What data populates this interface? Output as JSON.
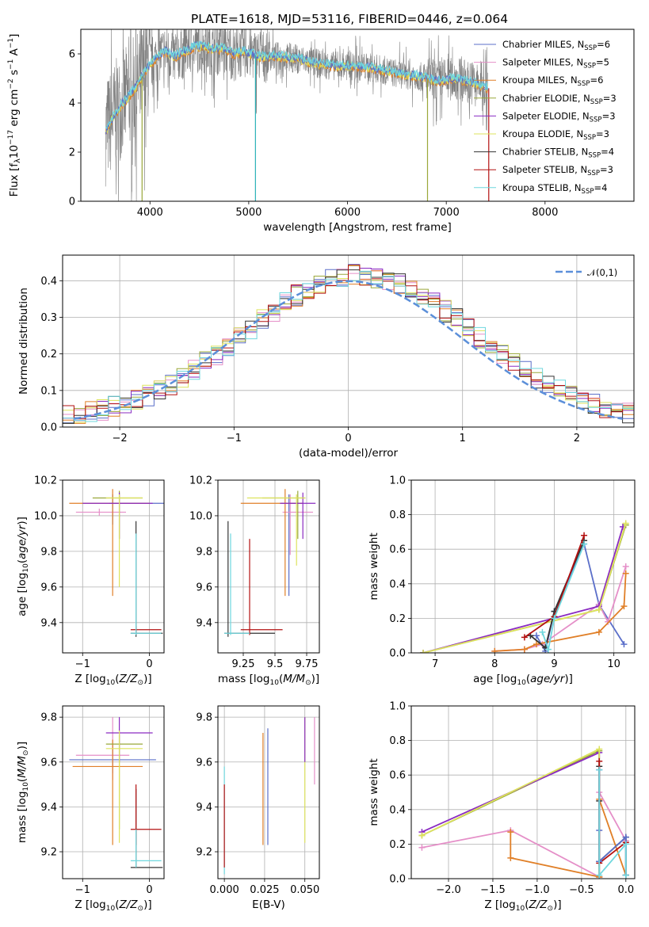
{
  "title": "PLATE=1618, MJD=53116, FIBERID=0446, z=0.064",
  "colors": {
    "blue": "#5b6fc9",
    "pink": "#e58fc8",
    "orange": "#e07f27",
    "olive": "#9aa83a",
    "purple": "#8a2bc2",
    "yellow": "#dde35d",
    "dark": "#333333",
    "red": "#b31010",
    "cyan": "#6fd7de",
    "gray": "#808080",
    "teal": "#2ab1b8",
    "dash": "#5b8fd9"
  },
  "chart_data": [
    {
      "id": "spectrum",
      "type": "line",
      "xlabel": "wavelength [Angstrom, rest frame]",
      "ylabel": "Flux [f_λ 10^-17 erg cm^-2 s^-1 A^-1]",
      "xlim": [
        3300,
        8900
      ],
      "ylim": [
        0,
        7
      ],
      "xticks": [
        4000,
        5000,
        6000,
        7000,
        8000
      ],
      "yticks": [
        0,
        2,
        4,
        6
      ],
      "grid": false,
      "legend_position": "right",
      "continuum": {
        "x": [
          3550,
          3650,
          3750,
          3850,
          3950,
          4050,
          4150,
          4250,
          4350,
          4450,
          4550,
          4650,
          4750,
          4850,
          4950,
          5100,
          5300,
          5500,
          5700,
          5900,
          6100,
          6300,
          6500,
          6700,
          6900,
          7100,
          7300,
          7420
        ],
        "y": [
          2.8,
          3.6,
          4.1,
          4.6,
          5.3,
          5.8,
          6.1,
          5.9,
          6.1,
          6.3,
          6.3,
          6.2,
          6.2,
          6.0,
          6.1,
          5.9,
          5.9,
          5.8,
          5.6,
          5.5,
          5.5,
          5.4,
          5.2,
          5.1,
          4.9,
          5.0,
          4.8,
          4.6
        ]
      },
      "series": [
        {
          "name": "Chabrier MILES, N_SSP=6",
          "color": "blue"
        },
        {
          "name": "Salpeter MILES, N_SSP=5",
          "color": "pink"
        },
        {
          "name": "Kroupa MILES, N_SSP=6",
          "color": "orange"
        },
        {
          "name": "Chabrier ELODIE, N_SSP=3",
          "color": "olive"
        },
        {
          "name": "Salpeter ELODIE, N_SSP=3",
          "color": "purple"
        },
        {
          "name": "Kroupa ELODIE, N_SSP=3",
          "color": "yellow"
        },
        {
          "name": "Chabrier STELIB, N_SSP=4",
          "color": "dark"
        },
        {
          "name": "Salpeter STELIB, N_SSP=3",
          "color": "red"
        },
        {
          "name": "Kroupa STELIB, N_SSP=4",
          "color": "cyan"
        }
      ]
    },
    {
      "id": "residuals",
      "type": "line",
      "xlabel": "(data-model)/error",
      "ylabel": "Normed distribution",
      "xlim": [
        -2.5,
        2.5
      ],
      "ylim": [
        0,
        0.47
      ],
      "xticks": [
        -2,
        -1,
        0,
        1,
        2
      ],
      "yticks": [
        0.0,
        0.1,
        0.2,
        0.3,
        0.4
      ],
      "grid": true,
      "legend_position": "top-right",
      "legend": "𝒩(0,1)",
      "bin_width": 0.1
    },
    {
      "id": "age-vs-Z",
      "type": "scatter",
      "xlabel": "Z [log10(Z/Z⊙)]",
      "ylabel": "age [log10(age/yr)]",
      "xlim": [
        -1.3,
        0.22
      ],
      "ylim": [
        9.23,
        10.2
      ],
      "xticks": [
        -1,
        0
      ],
      "yticks": [
        9.4,
        9.6,
        9.8,
        10.0,
        10.2
      ],
      "grid": true,
      "points": [
        {
          "x": -0.55,
          "y": 10.07,
          "dx": [
            -0.6,
            0.25
          ],
          "dy": [
            9.95,
            10.12
          ],
          "color": "blue"
        },
        {
          "x": -0.75,
          "y": 10.02,
          "dx": [
            -1.1,
            -0.35
          ],
          "dy": [
            10.0,
            10.04
          ],
          "color": "pink"
        },
        {
          "x": -0.55,
          "y": 10.07,
          "dx": [
            -1.2,
            0.0
          ],
          "dy": [
            9.55,
            10.15
          ],
          "color": "orange"
        },
        {
          "x": -0.45,
          "y": 10.1,
          "dx": [
            -0.85,
            -0.1
          ],
          "dy": [
            9.87,
            10.14
          ],
          "color": "olive"
        },
        {
          "x": -0.45,
          "y": 10.07,
          "dx": [
            -1.0,
            0.05
          ],
          "dy": [
            9.87,
            10.13
          ],
          "color": "purple"
        },
        {
          "x": -0.45,
          "y": 10.1,
          "dx": [
            -0.65,
            -0.1
          ],
          "dy": [
            9.6,
            10.12
          ],
          "color": "yellow"
        },
        {
          "x": -0.2,
          "y": 9.34,
          "dx": [
            -0.28,
            0.2
          ],
          "dy": [
            9.32,
            9.97
          ],
          "color": "dark"
        },
        {
          "x": -0.2,
          "y": 9.36,
          "dx": [
            -0.28,
            0.18
          ],
          "dy": [
            9.33,
            9.38
          ],
          "color": "red"
        },
        {
          "x": -0.2,
          "y": 9.34,
          "dx": [
            -0.28,
            0.18
          ],
          "dy": [
            9.33,
            9.9
          ],
          "color": "cyan"
        }
      ]
    },
    {
      "id": "age-vs-mass",
      "type": "scatter",
      "xlabel": "mass [log10(M/M⊙)]",
      "ylabel": "",
      "xlim": [
        9.05,
        9.85
      ],
      "ylim": [
        9.23,
        10.2
      ],
      "xticks": [
        9.25,
        9.5,
        9.75
      ],
      "yticks": [
        9.4,
        9.6,
        9.8,
        10.0,
        10.2
      ],
      "grid": true,
      "points": [
        {
          "x": 9.61,
          "y": 10.07,
          "dx": [
            9.55,
            9.68
          ],
          "dy": [
            9.55,
            10.12
          ],
          "color": "blue"
        },
        {
          "x": 9.62,
          "y": 10.02,
          "dx": [
            9.56,
            9.8
          ],
          "dy": [
            9.78,
            10.12
          ],
          "color": "pink"
        },
        {
          "x": 9.58,
          "y": 10.07,
          "dx": [
            9.23,
            9.72
          ],
          "dy": [
            9.55,
            10.15
          ],
          "color": "orange"
        },
        {
          "x": 9.68,
          "y": 10.1,
          "dx": [
            9.4,
            9.74
          ],
          "dy": [
            9.87,
            10.14
          ],
          "color": "olive"
        },
        {
          "x": 9.72,
          "y": 10.07,
          "dx": [
            9.54,
            9.82
          ],
          "dy": [
            9.87,
            10.13
          ],
          "color": "purple"
        },
        {
          "x": 9.67,
          "y": 10.1,
          "dx": [
            9.28,
            9.74
          ],
          "dy": [
            9.72,
            10.12
          ],
          "color": "yellow"
        },
        {
          "x": 9.13,
          "y": 9.34,
          "dx": [
            9.1,
            9.5
          ],
          "dy": [
            9.32,
            9.97
          ],
          "color": "dark"
        },
        {
          "x": 9.3,
          "y": 9.36,
          "dx": [
            9.23,
            9.56
          ],
          "dy": [
            9.33,
            9.87
          ],
          "color": "red"
        },
        {
          "x": 9.15,
          "y": 9.34,
          "dx": [
            9.1,
            9.3
          ],
          "dy": [
            9.33,
            9.9
          ],
          "color": "cyan"
        }
      ]
    },
    {
      "id": "weight-vs-age",
      "type": "line",
      "xlabel": "age [log10(age/yr)]",
      "ylabel": "mass weight",
      "xlim": [
        6.6,
        10.35
      ],
      "ylim": [
        0,
        1
      ],
      "xticks": [
        7,
        8,
        9,
        10
      ],
      "yticks": [
        0.0,
        0.2,
        0.4,
        0.6,
        0.8,
        1.0
      ],
      "grid": true,
      "series": [
        {
          "color": "blue",
          "x": [
            8.7,
            8.85,
            9.0,
            9.5,
            9.75,
            10.17
          ],
          "y": [
            0.1,
            0.01,
            0.24,
            0.63,
            0.28,
            0.05
          ]
        },
        {
          "color": "pink",
          "x": [
            8.0,
            8.5,
            8.8,
            9.75,
            9.9,
            10.2
          ],
          "y": [
            0.01,
            0.02,
            0.05,
            0.28,
            0.18,
            0.5
          ]
        },
        {
          "color": "orange",
          "x": [
            8.0,
            8.5,
            8.7,
            9.75,
            10.17,
            10.2
          ],
          "y": [
            0.01,
            0.02,
            0.05,
            0.12,
            0.27,
            0.46
          ]
        },
        {
          "color": "olive",
          "x": [
            6.8,
            9.75,
            10.2
          ],
          "y": [
            0.0,
            0.25,
            0.74
          ]
        },
        {
          "color": "purple",
          "x": [
            6.8,
            9.75,
            10.15
          ],
          "y": [
            0.0,
            0.27,
            0.73
          ]
        },
        {
          "color": "yellow",
          "x": [
            6.8,
            9.75,
            10.2
          ],
          "y": [
            0.0,
            0.25,
            0.75
          ]
        },
        {
          "color": "dark",
          "x": [
            8.6,
            8.85,
            9.0,
            9.5
          ],
          "y": [
            0.1,
            0.03,
            0.24,
            0.65
          ]
        },
        {
          "color": "red",
          "x": [
            8.5,
            9.0,
            9.5
          ],
          "y": [
            0.09,
            0.21,
            0.68
          ]
        },
        {
          "color": "cyan",
          "x": [
            8.8,
            8.9,
            9.0,
            9.5
          ],
          "y": [
            0.12,
            0.02,
            0.2,
            0.63
          ]
        }
      ]
    },
    {
      "id": "mass-vs-Z",
      "type": "scatter",
      "xlabel": "Z [log10(Z/Z⊙)]",
      "ylabel": "mass [log10(M/M⊙)]",
      "xlim": [
        -1.3,
        0.22
      ],
      "ylim": [
        9.08,
        9.85
      ],
      "xticks": [
        -1,
        0
      ],
      "yticks": [
        9.2,
        9.4,
        9.6,
        9.8
      ],
      "grid": true,
      "points": [
        {
          "x": -0.55,
          "y": 9.61,
          "dx": [
            -1.2,
            0.1
          ],
          "dy": [
            9.55,
            9.68
          ],
          "color": "blue"
        },
        {
          "x": -0.55,
          "y": 9.63,
          "dx": [
            -1.1,
            -0.3
          ],
          "dy": [
            9.52,
            9.8
          ],
          "color": "pink"
        },
        {
          "x": -0.55,
          "y": 9.58,
          "dx": [
            -1.15,
            -0.1
          ],
          "dy": [
            9.23,
            9.7
          ],
          "color": "orange"
        },
        {
          "x": -0.45,
          "y": 9.68,
          "dx": [
            -0.65,
            -0.1
          ],
          "dy": [
            9.3,
            9.72
          ],
          "color": "olive"
        },
        {
          "x": -0.45,
          "y": 9.73,
          "dx": [
            -0.65,
            0.05
          ],
          "dy": [
            9.6,
            9.8
          ],
          "color": "purple"
        },
        {
          "x": -0.45,
          "y": 9.66,
          "dx": [
            -0.65,
            -0.1
          ],
          "dy": [
            9.24,
            9.74
          ],
          "color": "yellow"
        },
        {
          "x": -0.2,
          "y": 9.13,
          "dx": [
            -0.28,
            0.2
          ],
          "dy": [
            9.13,
            9.48
          ],
          "color": "dark"
        },
        {
          "x": -0.2,
          "y": 9.3,
          "dx": [
            -0.28,
            0.18
          ],
          "dy": [
            9.23,
            9.5
          ],
          "color": "red"
        },
        {
          "x": -0.2,
          "y": 9.16,
          "dx": [
            -0.28,
            0.18
          ],
          "dy": [
            9.13,
            9.3
          ],
          "color": "cyan"
        }
      ]
    },
    {
      "id": "mass-vs-EBV",
      "type": "scatter",
      "xlabel": "E(B-V)",
      "ylabel": "",
      "xlim": [
        -0.004,
        0.059
      ],
      "ylim": [
        9.08,
        9.85
      ],
      "xticks": [
        0.0,
        0.025,
        0.05
      ],
      "xticklabels": [
        "0.000",
        "0.025",
        "0.050"
      ],
      "yticks": [
        9.2,
        9.4,
        9.6,
        9.8
      ],
      "grid": true,
      "bars": [
        {
          "x": 0.0,
          "dy": [
            9.1,
            9.58
          ],
          "color": "cyan"
        },
        {
          "x": 0.0,
          "dy": [
            9.13,
            9.5
          ],
          "color": "red"
        },
        {
          "x": 0.024,
          "dy": [
            9.23,
            9.73
          ],
          "color": "orange"
        },
        {
          "x": 0.027,
          "dy": [
            9.23,
            9.75
          ],
          "color": "blue"
        },
        {
          "x": 0.05,
          "dy": [
            9.24,
            9.8
          ],
          "color": "yellow"
        },
        {
          "x": 0.05,
          "dy": [
            9.6,
            9.8
          ],
          "color": "purple"
        },
        {
          "x": 0.056,
          "dy": [
            9.5,
            9.8
          ],
          "color": "pink"
        }
      ]
    },
    {
      "id": "weight-vs-Z",
      "type": "line",
      "xlabel": "Z [log10(Z/Z⊙)]",
      "ylabel": "mass weight",
      "xlim": [
        -2.42,
        0.1
      ],
      "ylim": [
        0,
        1
      ],
      "xticks": [
        -2.0,
        -1.5,
        -1.0,
        -0.5,
        0.0
      ],
      "xticklabels": [
        "−2.0",
        "−1.5",
        "−1.0",
        "−0.5",
        "0.0"
      ],
      "yticks": [
        0.0,
        0.2,
        0.4,
        0.6,
        0.8,
        1.0
      ],
      "grid": true,
      "series": [
        {
          "color": "olive",
          "x": [
            -2.3,
            -0.3,
            -0.3
          ],
          "y": [
            0.25,
            0.74,
            0.01
          ]
        },
        {
          "color": "purple",
          "x": [
            -2.3,
            -0.3,
            -0.3
          ],
          "y": [
            0.27,
            0.73,
            0.01
          ]
        },
        {
          "color": "yellow",
          "x": [
            -2.3,
            -0.3,
            -0.3
          ],
          "y": [
            0.25,
            0.75,
            0.01
          ]
        },
        {
          "color": "pink",
          "x": [
            -2.3,
            -1.3,
            -0.3,
            -0.3,
            0.0,
            0.0
          ],
          "y": [
            0.18,
            0.28,
            0.01,
            0.5,
            0.22,
            0.02
          ]
        },
        {
          "color": "orange",
          "x": [
            -1.3,
            -1.3,
            -0.3,
            -0.3,
            0.0
          ],
          "y": [
            0.27,
            0.12,
            0.01,
            0.46,
            0.02
          ]
        },
        {
          "color": "dark",
          "x": [
            -0.3,
            -0.3,
            -0.3,
            0.0,
            0.0
          ],
          "y": [
            0.65,
            0.45,
            0.1,
            0.24,
            0.02
          ]
        },
        {
          "color": "red",
          "x": [
            -0.3,
            -0.3,
            0.0
          ],
          "y": [
            0.68,
            0.09,
            0.21
          ]
        },
        {
          "color": "blue",
          "x": [
            -0.3,
            -0.3,
            -0.3,
            0.0,
            0.0
          ],
          "y": [
            0.63,
            0.28,
            0.1,
            0.24,
            0.02
          ]
        },
        {
          "color": "cyan",
          "x": [
            -0.3,
            -0.3,
            0.0,
            0.0
          ],
          "y": [
            0.63,
            0.02,
            0.2,
            0.02
          ]
        }
      ]
    }
  ]
}
